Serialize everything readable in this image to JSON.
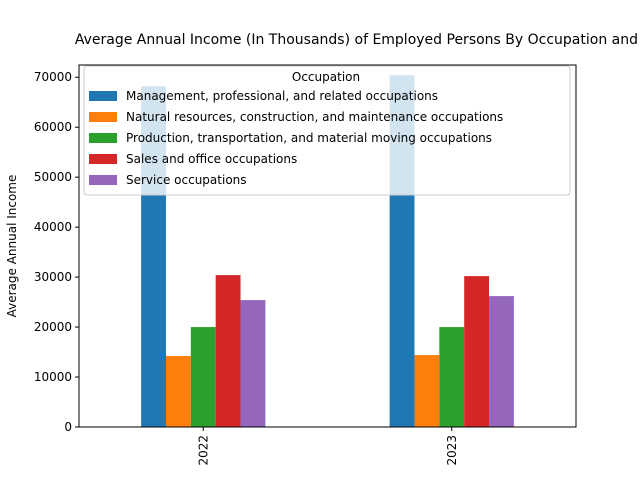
{
  "chart_data": {
    "type": "bar",
    "title": "Average Annual Income (In Thousands) of Employed Persons By Occupation and",
    "y_label": "Average Annual Income",
    "categories": [
      "2022",
      "2023"
    ],
    "legend_title": "Occupation",
    "legend_position": "upper left",
    "series": [
      {
        "name": "Management, professional, and related occupations",
        "color": "#1f77b4",
        "values": [
          68200,
          70400
        ]
      },
      {
        "name": "Natural resources, construction, and maintenance occupations",
        "color": "#ff7f0e",
        "values": [
          14200,
          14400
        ]
      },
      {
        "name": "Production, transportation, and material moving occupations",
        "color": "#2ca02c",
        "values": [
          20000,
          20000
        ]
      },
      {
        "name": "Sales and office occupations",
        "color": "#d62728",
        "values": [
          30400,
          30200
        ]
      },
      {
        "name": "Service occupations",
        "color": "#9467bd",
        "values": [
          25400,
          26200
        ]
      }
    ],
    "ylim": [
      0,
      72450
    ],
    "yticks": [
      0,
      10000,
      20000,
      30000,
      40000,
      50000,
      60000,
      70000
    ]
  }
}
